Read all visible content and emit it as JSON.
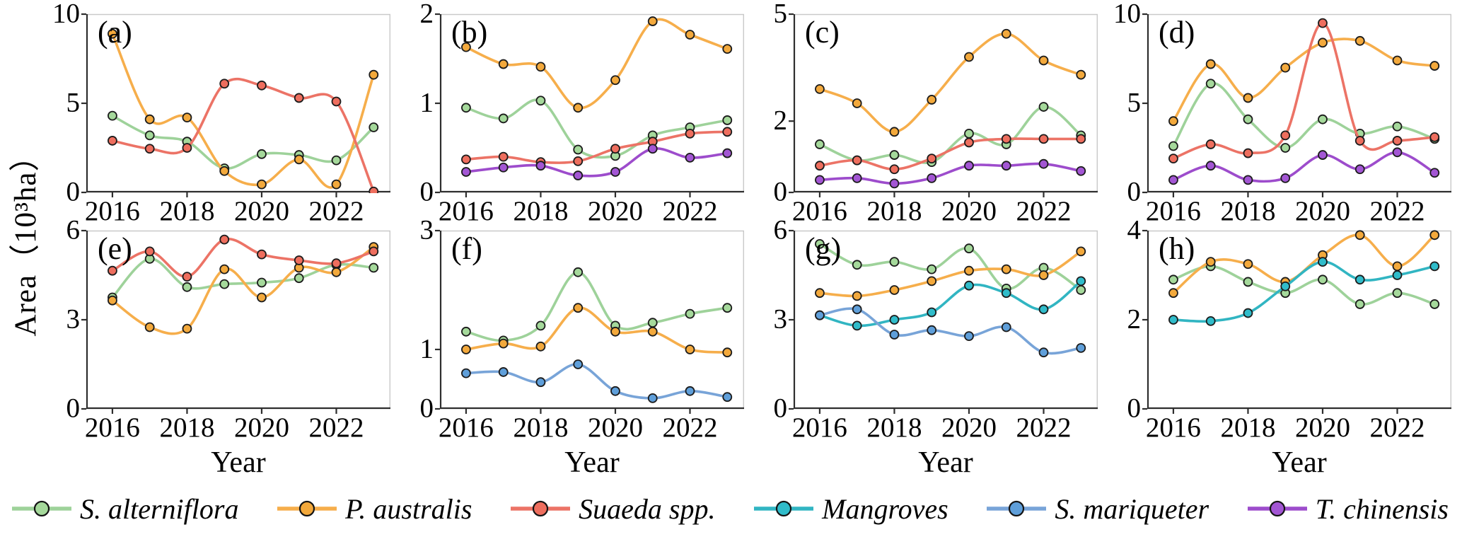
{
  "chart_data": {
    "type": "line",
    "x": [
      2016,
      2017,
      2018,
      2019,
      2020,
      2021,
      2022,
      2023
    ],
    "xticks": [
      2016,
      2018,
      2020,
      2022
    ],
    "xlim": [
      2015.3,
      2023.45
    ],
    "xlabel": "Year",
    "ylabel": "Area（10³ha）",
    "grid": false,
    "legend_position": "bottom",
    "panels": [
      {
        "id": "a",
        "label": "(a)",
        "ylim": [
          0,
          10
        ],
        "yticks": [
          0,
          5,
          10
        ],
        "series": [
          {
            "name": "S. alterniflora",
            "values": [
              4.3,
              3.2,
              2.85,
              1.35,
              2.15,
              2.1,
              1.8,
              3.65
            ]
          },
          {
            "name": "P. australis",
            "values": [
              8.9,
              4.1,
              4.2,
              1.2,
              0.45,
              1.85,
              0.45,
              6.6
            ]
          },
          {
            "name": "Suaeda spp.",
            "values": [
              2.9,
              2.45,
              2.5,
              6.1,
              6.0,
              5.3,
              5.1,
              0.05
            ]
          }
        ]
      },
      {
        "id": "b",
        "label": "(b)",
        "ylim": [
          0,
          2
        ],
        "yticks": [
          0,
          1,
          2
        ],
        "series": [
          {
            "name": "S. alterniflora",
            "values": [
              0.95,
              0.83,
              1.03,
              0.48,
              0.41,
              0.64,
              0.73,
              0.81
            ]
          },
          {
            "name": "P. australis",
            "values": [
              1.63,
              1.44,
              1.41,
              0.95,
              1.26,
              1.92,
              1.77,
              1.61
            ]
          },
          {
            "name": "Suaeda spp.",
            "values": [
              0.37,
              0.4,
              0.34,
              0.35,
              0.49,
              0.57,
              0.66,
              0.68
            ]
          },
          {
            "name": "T. chinensis",
            "values": [
              0.23,
              0.28,
              0.3,
              0.19,
              0.23,
              0.49,
              0.39,
              0.44
            ]
          }
        ]
      },
      {
        "id": "c",
        "label": "(c)",
        "ylim": [
          0,
          5
        ],
        "yticks": [
          0,
          2,
          5
        ],
        "series": [
          {
            "name": "S. alterniflora",
            "values": [
              1.35,
              0.9,
              1.05,
              0.85,
              1.65,
              1.35,
              2.4,
              1.6
            ]
          },
          {
            "name": "P. australis",
            "values": [
              2.9,
              2.5,
              1.7,
              2.6,
              3.8,
              4.45,
              3.7,
              3.3
            ]
          },
          {
            "name": "Suaeda spp.",
            "values": [
              0.75,
              0.9,
              0.65,
              0.95,
              1.4,
              1.5,
              1.5,
              1.5
            ]
          },
          {
            "name": "T. chinensis",
            "values": [
              0.35,
              0.4,
              0.25,
              0.4,
              0.75,
              0.75,
              0.8,
              0.6
            ]
          }
        ]
      },
      {
        "id": "d",
        "label": "(d)",
        "ylim": [
          0,
          10
        ],
        "yticks": [
          0,
          5,
          10
        ],
        "series": [
          {
            "name": "S. alterniflora",
            "values": [
              2.6,
              6.1,
              4.1,
              2.5,
              4.1,
              3.3,
              3.7,
              3.0
            ]
          },
          {
            "name": "P. australis",
            "values": [
              4.0,
              7.2,
              5.3,
              7.0,
              8.4,
              8.5,
              7.4,
              7.1
            ]
          },
          {
            "name": "Suaeda spp.",
            "values": [
              1.9,
              2.7,
              2.2,
              3.2,
              9.5,
              2.9,
              2.9,
              3.1
            ]
          },
          {
            "name": "T. chinensis",
            "values": [
              0.7,
              1.5,
              0.7,
              0.8,
              2.1,
              1.3,
              2.25,
              1.1
            ]
          }
        ]
      },
      {
        "id": "e",
        "label": "(e)",
        "ylim": [
          0,
          6
        ],
        "yticks": [
          0,
          3,
          6
        ],
        "show_xlabel": true,
        "series": [
          {
            "name": "S. alterniflora",
            "values": [
              3.75,
              5.05,
              4.1,
              4.2,
              4.25,
              4.4,
              4.85,
              4.75
            ]
          },
          {
            "name": "P. australis",
            "values": [
              3.65,
              2.75,
              2.7,
              4.7,
              3.75,
              4.75,
              4.6,
              5.45
            ]
          },
          {
            "name": "Suaeda spp.",
            "values": [
              4.65,
              5.3,
              4.45,
              5.7,
              5.2,
              5.0,
              4.9,
              5.3
            ]
          }
        ]
      },
      {
        "id": "f",
        "label": "(f)",
        "ylim": [
          0,
          3
        ],
        "yticks": [
          0,
          1,
          3
        ],
        "show_xlabel": true,
        "series": [
          {
            "name": "S. alterniflora",
            "values": [
              1.3,
              1.15,
              1.4,
              2.3,
              1.4,
              1.45,
              1.6,
              1.7
            ]
          },
          {
            "name": "P. australis",
            "values": [
              1.0,
              1.1,
              1.05,
              1.7,
              1.3,
              1.3,
              1.0,
              0.95
            ]
          },
          {
            "name": "S. mariqueter",
            "values": [
              0.6,
              0.62,
              0.45,
              0.75,
              0.3,
              0.18,
              0.3,
              0.2
            ]
          }
        ]
      },
      {
        "id": "g",
        "label": "(g)",
        "ylim": [
          0,
          6
        ],
        "yticks": [
          0,
          3,
          6
        ],
        "show_xlabel": true,
        "series": [
          {
            "name": "S. alterniflora",
            "values": [
              5.55,
              4.85,
              4.95,
              4.7,
              5.4,
              4.05,
              4.75,
              4.0
            ]
          },
          {
            "name": "P. australis",
            "values": [
              3.9,
              3.8,
              4.0,
              4.3,
              4.65,
              4.7,
              4.5,
              5.3
            ]
          },
          {
            "name": "Mangroves",
            "values": [
              3.15,
              2.8,
              3.0,
              3.25,
              4.15,
              3.9,
              3.35,
              4.3
            ]
          },
          {
            "name": "S. mariqueter",
            "values": [
              3.15,
              3.35,
              2.5,
              2.65,
              2.45,
              2.75,
              1.9,
              2.05
            ]
          }
        ]
      },
      {
        "id": "h",
        "label": "(h)",
        "ylim": [
          0,
          4
        ],
        "yticks": [
          0,
          2,
          4
        ],
        "show_xlabel": true,
        "series": [
          {
            "name": "S. alterniflora",
            "values": [
              2.9,
              3.2,
              2.85,
              2.6,
              2.9,
              2.35,
              2.6,
              2.35
            ]
          },
          {
            "name": "P. australis",
            "values": [
              2.6,
              3.3,
              3.25,
              2.85,
              3.45,
              3.9,
              3.2,
              3.9
            ]
          },
          {
            "name": "Mangroves",
            "values": [
              2.0,
              1.97,
              2.15,
              2.75,
              3.3,
              2.9,
              3.0,
              3.2
            ]
          }
        ]
      }
    ],
    "legend": {
      "entries": [
        {
          "label": "S. alterniflora",
          "line_color": "#9ed29a",
          "marker_color": "#a5d99b"
        },
        {
          "label": "P. australis",
          "line_color": "#f6ae4b",
          "marker_color": "#f3a93c"
        },
        {
          "label": "Suaeda spp.",
          "line_color": "#ec7366",
          "marker_color": "#ee6e5e"
        },
        {
          "label": "Mangroves",
          "line_color": "#31b5c2",
          "marker_color": "#30bcca"
        },
        {
          "label": "S. mariqueter",
          "line_color": "#78a4d8",
          "marker_color": "#5f9fda"
        },
        {
          "label": "T. chinensis",
          "line_color": "#9d4ccc",
          "marker_color": "#a356d4"
        }
      ]
    },
    "style": {
      "axis_color": "#2e2e2e",
      "frame_color": "#c9c9c9",
      "marker_edge_color": "#1c1c1c"
    }
  }
}
